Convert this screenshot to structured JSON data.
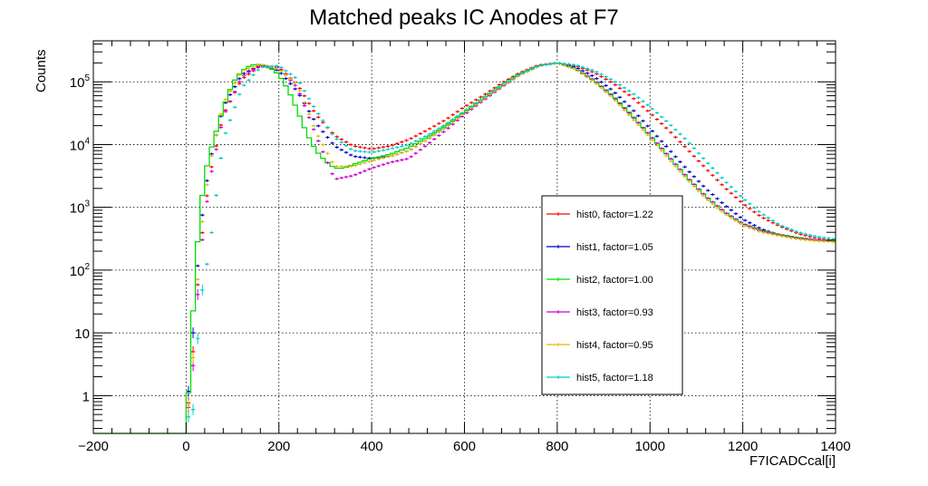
{
  "chart_data": {
    "type": "line",
    "title": "Matched peaks IC Anodes at F7",
    "xlabel": "F7ICADCcal[i]",
    "ylabel": "Counts",
    "xlim": [
      -200,
      1400
    ],
    "ylim": [
      0.25,
      450000
    ],
    "yscale": "log",
    "grid": true,
    "legend_position": "center-right",
    "x_ticks": [
      -200,
      0,
      200,
      400,
      600,
      800,
      1000,
      1200,
      1400
    ],
    "x_tick_labels": [
      "−200",
      "0",
      "200",
      "400",
      "600",
      "800",
      "1000",
      "1200",
      "1400"
    ],
    "y_ticks": [
      1,
      10,
      100,
      1000,
      10000,
      100000
    ],
    "y_tick_labels": [
      {
        "base": "1",
        "exp": ""
      },
      {
        "base": "10",
        "exp": ""
      },
      {
        "base": "10",
        "exp": "2"
      },
      {
        "base": "10",
        "exp": "3"
      },
      {
        "base": "10",
        "exp": "4"
      },
      {
        "base": "10",
        "exp": "5"
      }
    ],
    "series": [
      {
        "name": "hist0, factor=1.22",
        "color": "#ff0000",
        "style": "errorbar",
        "x": [
          0,
          15,
          30,
          50,
          80,
          120,
          160,
          200,
          240,
          280,
          320,
          360,
          400,
          440,
          480,
          520,
          560,
          600,
          640,
          680,
          720,
          760,
          800,
          840,
          880,
          920,
          960,
          1000,
          1040,
          1080,
          1120,
          1160,
          1200,
          1240,
          1280,
          1320,
          1360,
          1400
        ],
        "y": [
          0.3,
          5,
          200,
          3000,
          30000,
          110000,
          180000,
          170000,
          90000,
          30000,
          14000,
          9500,
          8500,
          9500,
          12000,
          17000,
          25000,
          40000,
          60000,
          95000,
          140000,
          185000,
          200000,
          180000,
          140000,
          95000,
          58000,
          32000,
          17000,
          8500,
          4200,
          2100,
          1150,
          700,
          500,
          380,
          320,
          290
        ]
      },
      {
        "name": "hist1, factor=1.05",
        "color": "#0000cc",
        "style": "errorbar",
        "x": [
          0,
          15,
          30,
          50,
          80,
          120,
          160,
          200,
          240,
          280,
          320,
          360,
          400,
          440,
          480,
          520,
          560,
          600,
          640,
          680,
          720,
          760,
          800,
          840,
          880,
          920,
          960,
          1000,
          1040,
          1080,
          1120,
          1160,
          1200,
          1240,
          1280,
          1320,
          1360,
          1400
        ],
        "y": [
          0.4,
          10,
          400,
          5000,
          40000,
          130000,
          185000,
          150000,
          70000,
          22000,
          9500,
          6500,
          6000,
          6500,
          8000,
          12000,
          19000,
          32000,
          52000,
          85000,
          130000,
          180000,
          200000,
          170000,
          120000,
          72000,
          38000,
          18000,
          8500,
          4000,
          2000,
          1100,
          650,
          450,
          360,
          320,
          300,
          290
        ]
      },
      {
        "name": "hist2, factor=1.00",
        "color": "#00dd00",
        "style": "step",
        "x": [
          -200,
          0,
          10,
          20,
          30,
          40,
          50,
          60,
          70,
          80,
          90,
          100,
          120,
          140,
          160,
          180,
          200,
          220,
          240,
          260,
          280,
          300,
          320,
          340,
          360,
          400,
          440,
          480,
          520,
          560,
          600,
          640,
          680,
          720,
          760,
          800,
          840,
          880,
          920,
          960,
          1000,
          1040,
          1080,
          1120,
          1160,
          1200,
          1240,
          1280,
          1320,
          1360,
          1400
        ],
        "y": [
          0.25,
          0.25,
          5,
          100,
          800,
          3000,
          7000,
          12000,
          22000,
          38000,
          60000,
          95000,
          150000,
          185000,
          190000,
          170000,
          130000,
          75000,
          35000,
          15000,
          8000,
          5500,
          4200,
          4200,
          4800,
          6000,
          7000,
          9000,
          13000,
          20000,
          33000,
          55000,
          88000,
          135000,
          180000,
          200000,
          160000,
          105000,
          60000,
          30000,
          14000,
          6500,
          3000,
          1500,
          850,
          550,
          430,
          370,
          330,
          300,
          290
        ]
      },
      {
        "name": "hist3, factor=0.93",
        "color": "#cc00cc",
        "style": "errorbar",
        "x": [
          0,
          15,
          30,
          50,
          80,
          120,
          160,
          200,
          240,
          280,
          320,
          360,
          400,
          440,
          480,
          520,
          560,
          600,
          640,
          680,
          720,
          760,
          800,
          840,
          880,
          920,
          960,
          1000,
          1040,
          1080,
          1120,
          1160,
          1200,
          1240,
          1280,
          1320,
          1360,
          1400
        ],
        "y": [
          0.3,
          3,
          150,
          2500,
          28000,
          120000,
          185000,
          170000,
          80000,
          14000,
          2800,
          3200,
          4200,
          5200,
          6000,
          10000,
          17000,
          30000,
          50000,
          82000,
          130000,
          180000,
          200000,
          160000,
          105000,
          58000,
          29000,
          14000,
          6500,
          3000,
          1500,
          850,
          550,
          420,
          360,
          320,
          300,
          280
        ]
      },
      {
        "name": "hist4, factor=0.95",
        "color": "#e6b800",
        "style": "errorbar",
        "x": [
          0,
          15,
          30,
          50,
          80,
          120,
          160,
          200,
          240,
          280,
          320,
          360,
          400,
          440,
          480,
          520,
          560,
          600,
          640,
          680,
          720,
          760,
          800,
          840,
          880,
          920,
          960,
          1000,
          1040,
          1080,
          1120,
          1160,
          1200,
          1240,
          1280,
          1320,
          1360,
          1400
        ],
        "y": [
          0.3,
          4,
          300,
          4500,
          45000,
          150000,
          190000,
          160000,
          90000,
          16000,
          4500,
          4500,
          5500,
          6500,
          8000,
          12000,
          19000,
          32000,
          52000,
          85000,
          130000,
          180000,
          200000,
          158000,
          100000,
          55000,
          27000,
          13000,
          6000,
          2800,
          1400,
          800,
          520,
          400,
          350,
          310,
          290,
          280
        ]
      },
      {
        "name": "hist5, factor=1.18",
        "color": "#00cccc",
        "style": "errorbar",
        "x": [
          0,
          15,
          30,
          50,
          80,
          120,
          160,
          200,
          240,
          280,
          320,
          360,
          400,
          440,
          480,
          520,
          560,
          600,
          640,
          680,
          720,
          760,
          800,
          840,
          880,
          920,
          960,
          1000,
          1040,
          1080,
          1120,
          1160,
          1200,
          1240,
          1280,
          1320,
          1360,
          1400
        ],
        "y": [
          0.4,
          0.6,
          30,
          200,
          12000,
          80000,
          170000,
          180000,
          110000,
          35000,
          13000,
          8000,
          7500,
          8500,
          10000,
          14000,
          21000,
          34000,
          55000,
          88000,
          135000,
          180000,
          200000,
          185000,
          150000,
          105000,
          68000,
          40000,
          22000,
          11500,
          5500,
          2700,
          1400,
          800,
          520,
          400,
          340,
          310
        ]
      }
    ]
  }
}
